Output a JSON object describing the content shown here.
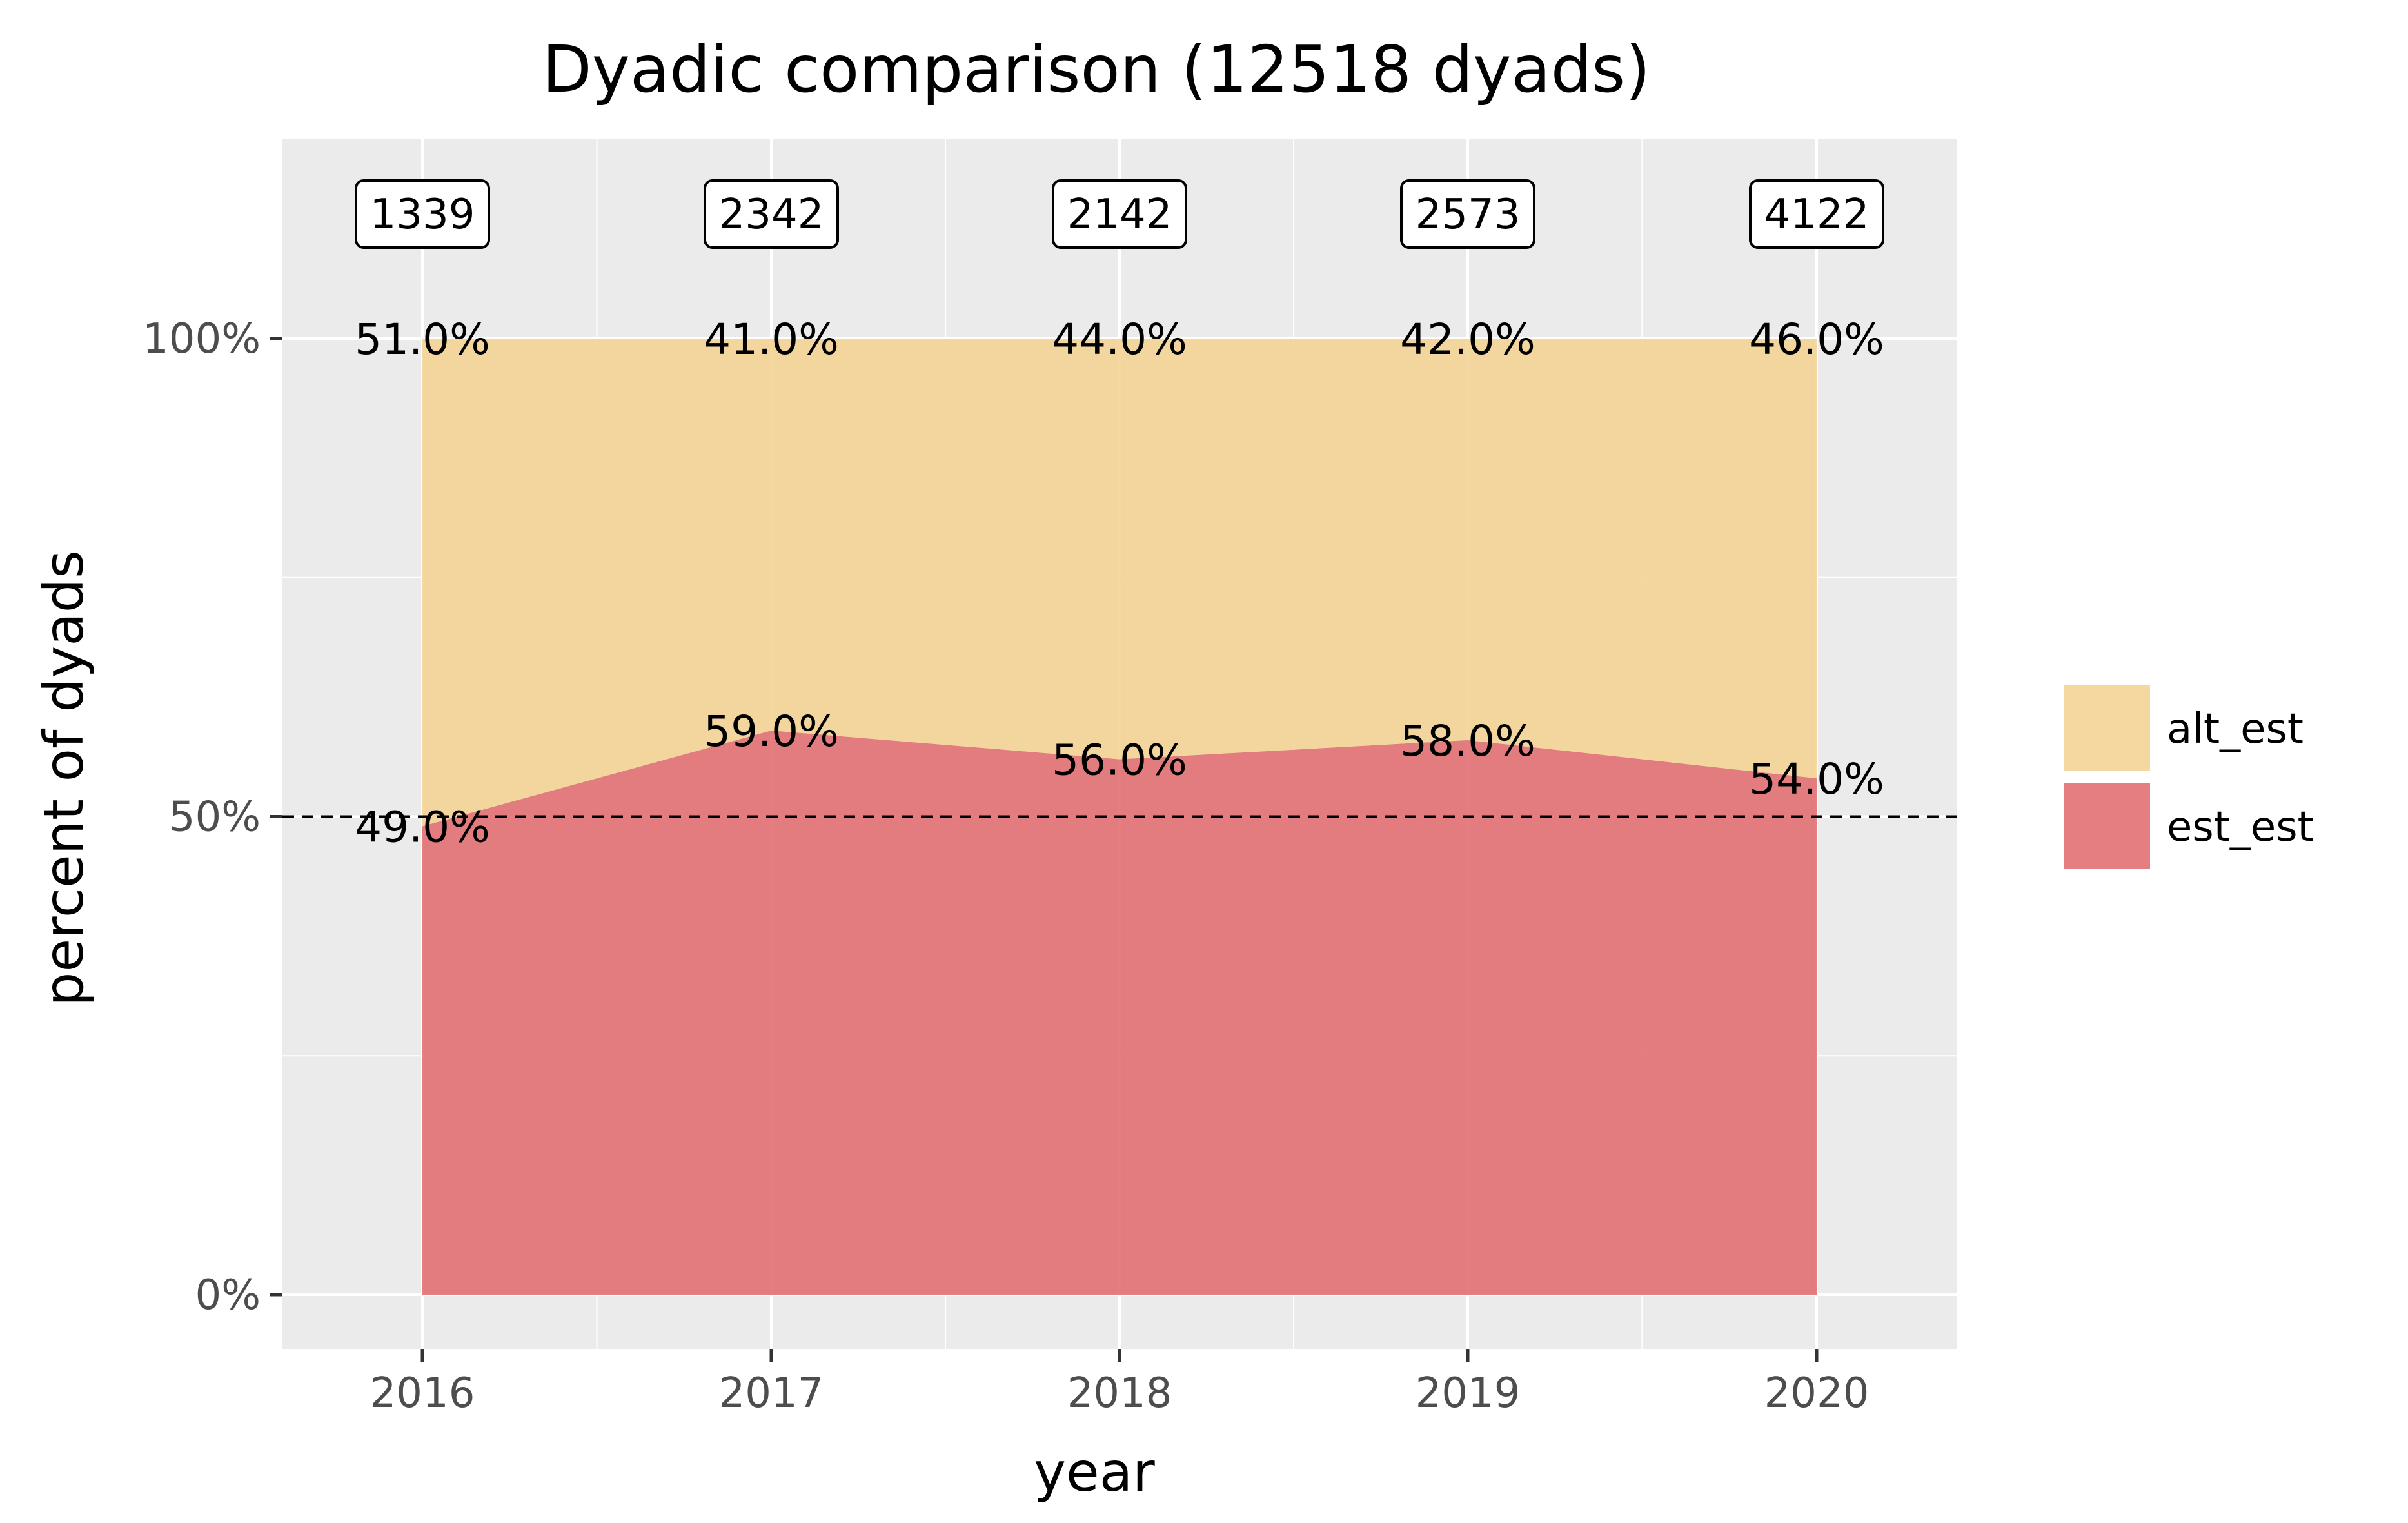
{
  "chart_data": {
    "type": "area",
    "stacked": true,
    "title": "Dyadic comparison (12518 dyads)",
    "xlabel": "year",
    "ylabel": "percent of dyads",
    "x": [
      2016,
      2017,
      2018,
      2019,
      2020
    ],
    "x_tick_labels": [
      "2016",
      "2017",
      "2018",
      "2019",
      "2020"
    ],
    "ylim": [
      0,
      100
    ],
    "y_ticks": [
      0,
      50,
      100
    ],
    "y_tick_labels": [
      "0%",
      "50%",
      "100%"
    ],
    "series": [
      {
        "name": "est_est",
        "values": [
          49.0,
          59.0,
          56.0,
          58.0,
          54.0
        ],
        "labels": [
          "49.0%",
          "59.0%",
          "56.0%",
          "58.0%",
          "54.0%"
        ],
        "color": "#e27072"
      },
      {
        "name": "alt_est",
        "values": [
          51.0,
          41.0,
          44.0,
          42.0,
          46.0
        ],
        "labels": [
          "51.0%",
          "41.0%",
          "44.0%",
          "42.0%",
          "46.0%"
        ],
        "color": "#f3d495"
      }
    ],
    "counts": [
      "1339",
      "2342",
      "2142",
      "2573",
      "4122"
    ],
    "reference_line": {
      "y": 50,
      "style": "dashed",
      "color": "#000000"
    },
    "legend": {
      "position": "right",
      "entries": [
        {
          "label": "alt_est",
          "color": "#f3d495"
        },
        {
          "label": "est_est",
          "color": "#e27072"
        }
      ]
    },
    "grid": true,
    "panel_background": "#ebebeb"
  }
}
